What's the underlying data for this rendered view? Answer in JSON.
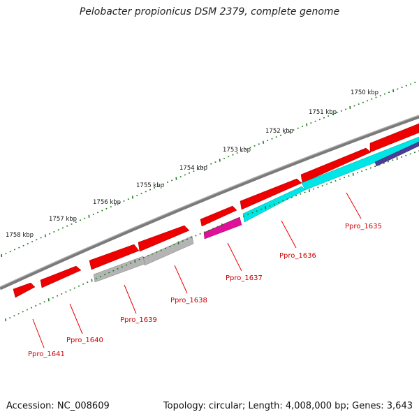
{
  "title": "Pelobacter propionicus DSM 2379, complete genome",
  "footer": {
    "accession": "Accession: NC_008609",
    "summary": "Topology: circular; Length: 4,008,000 bp; Genes: 3,643"
  },
  "colors": {
    "backbone": "#808080",
    "forward_gene": "#ee0000",
    "tick": "#1a7a1a",
    "label": "#cc0000",
    "gray_feature": "#b4b4b4",
    "cyan_feature": "#00e6e6",
    "magenta_feature": "#e0109a",
    "navy_feature": "#4b3c96"
  },
  "kbp_labels": [
    "1750 kbp",
    "1751 kbp",
    "1752 kbp",
    "1753 kbp",
    "1754 kbp",
    "1755 kbp",
    "1756 kbp",
    "1757 kbp",
    "1758 kbp"
  ],
  "gene_labels": [
    "Ppro_1635",
    "Ppro_1636",
    "Ppro_1637",
    "Ppro_1638",
    "Ppro_1639",
    "Ppro_1640",
    "Ppro_1641"
  ]
}
